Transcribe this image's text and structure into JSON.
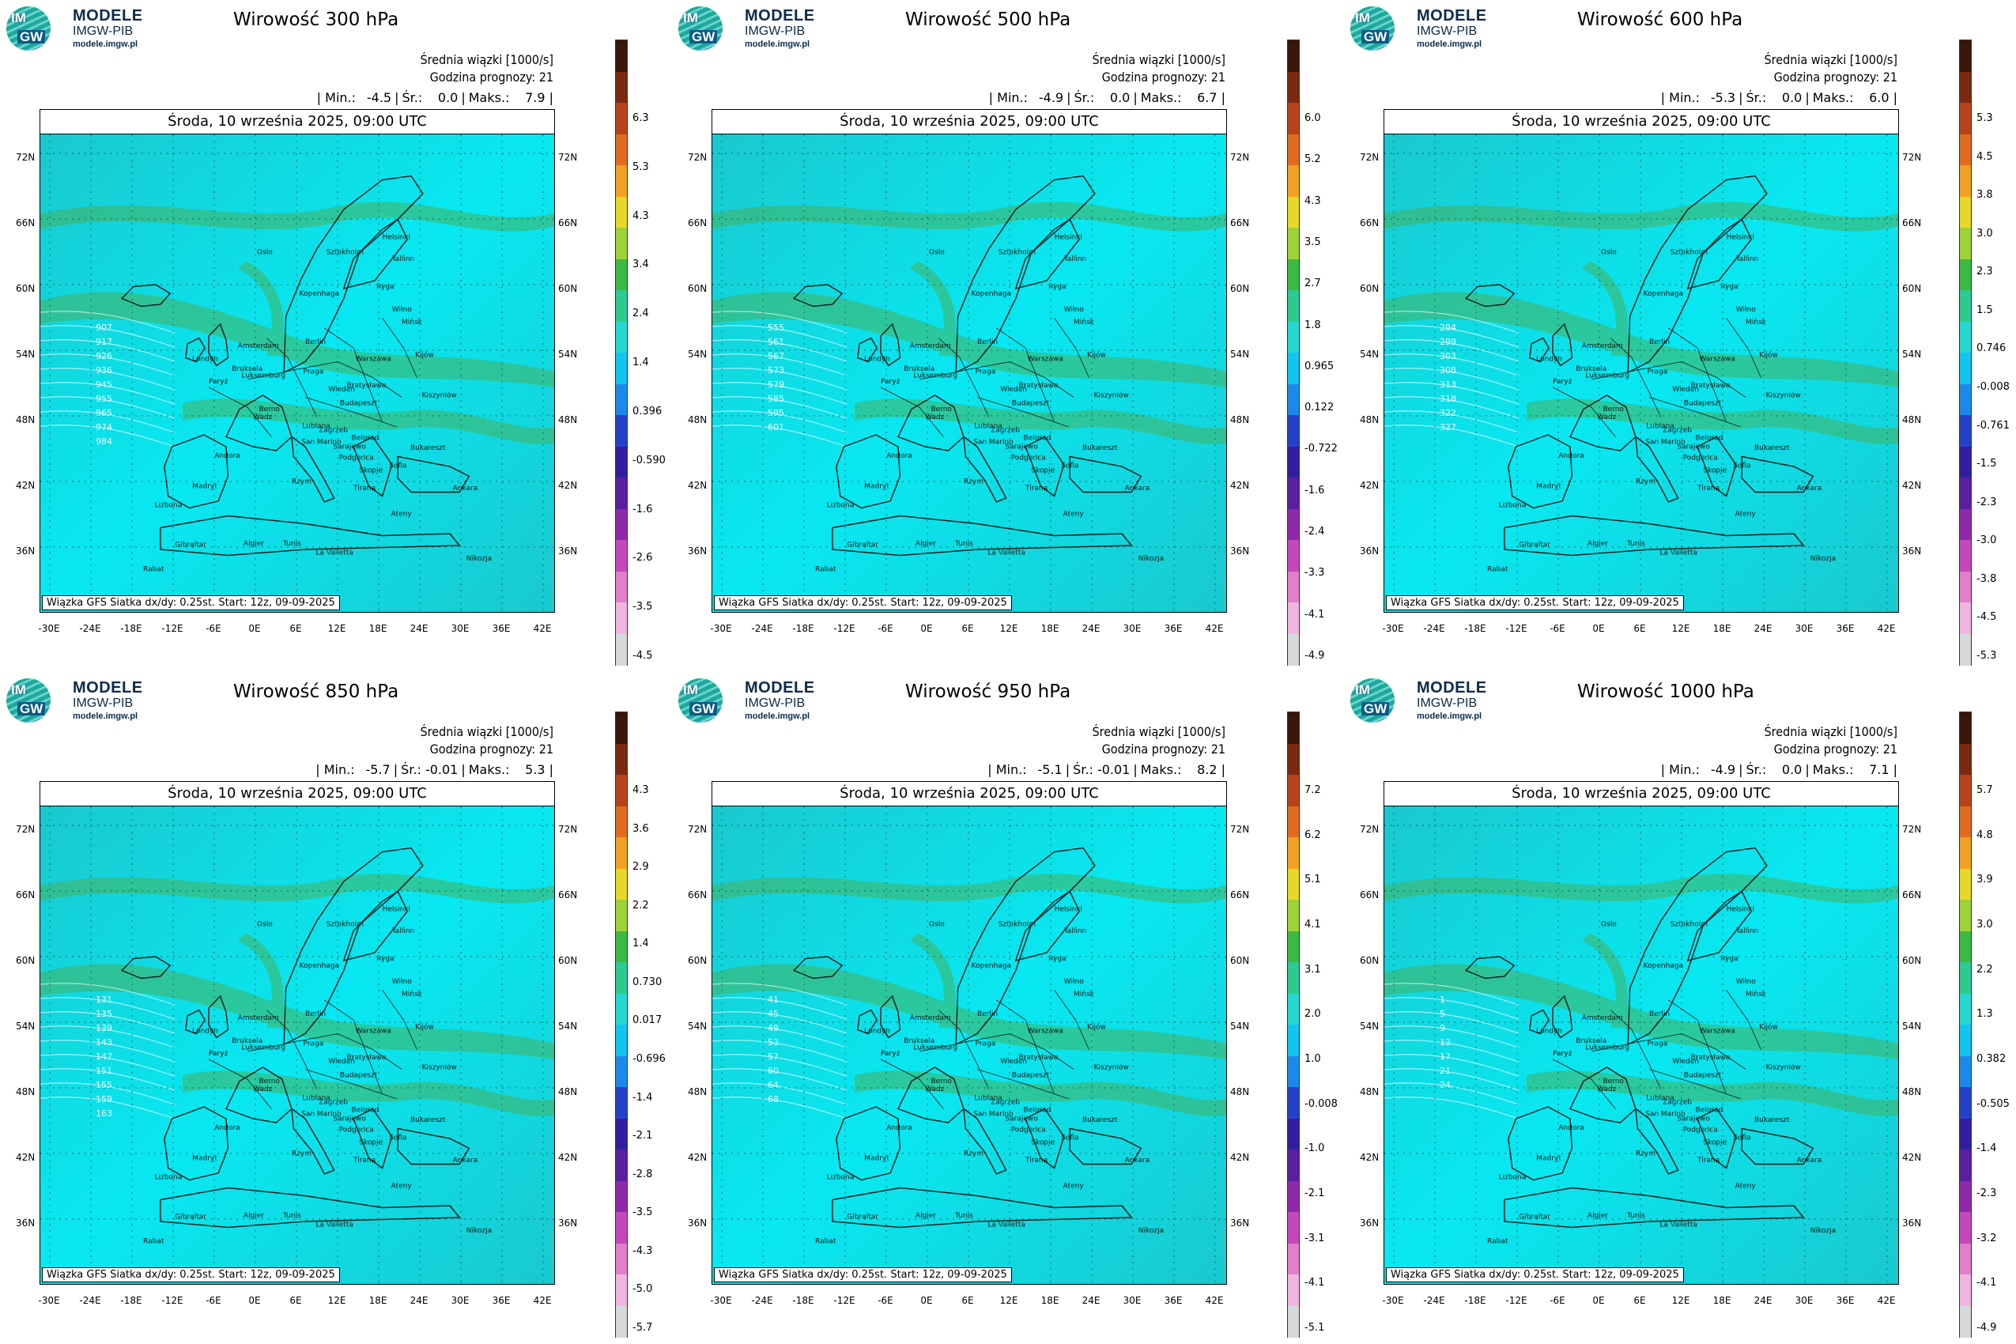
{
  "header": {
    "brand_line1": "MODELE",
    "brand_line2": "IMGW-PIB",
    "brand_line3": "modele.imgw.pl",
    "logo_top": "IM",
    "logo_bottom": "GW"
  },
  "panels": [
    {
      "title": "Wirowość 300 hPa",
      "avg_label": "Średnia wiązki [1000/s]",
      "forecast_label": "Godzina prognozy: 21",
      "min_label": "Min.:",
      "min": "-4.5",
      "avg_short": "Śr.:",
      "avg": "0.0",
      "max_label": "Maks.:",
      "max": "7.9",
      "date": "Środa, 10 września 2025, 09:00 UTC",
      "source": "Wiązka GFS Siatka dx/dy: 0.25st. Start: 12z, 09-09-2025",
      "colorbar": [
        "6.3",
        "5.3",
        "4.3",
        "3.4",
        "2.4",
        "1.4",
        "0.396",
        "-0.590",
        "-1.6",
        "-2.6",
        "-3.5",
        "-4.5"
      ],
      "contours": [
        "907",
        "917",
        "926",
        "936",
        "945",
        "955",
        "965",
        "974",
        "984"
      ]
    },
    {
      "title": "Wirowość 500 hPa",
      "avg_label": "Średnia wiązki [1000/s]",
      "forecast_label": "Godzina prognozy: 21",
      "min_label": "Min.:",
      "min": "-4.9",
      "avg_short": "Śr.:",
      "avg": "0.0",
      "max_label": "Maks.:",
      "max": "6.7",
      "date": "Środa, 10 września 2025, 09:00 UTC",
      "source": "Wiązka GFS Siatka dx/dy: 0.25st. Start: 12z, 09-09-2025",
      "colorbar": [
        "6.0",
        "5.2",
        "4.3",
        "3.5",
        "2.7",
        "1.8",
        "0.965",
        "0.122",
        "-0.722",
        "-1.6",
        "-2.4",
        "-3.3",
        "-4.1",
        "-4.9"
      ],
      "contours": [
        "555",
        "561",
        "567",
        "573",
        "579",
        "585",
        "595",
        "601"
      ]
    },
    {
      "title": "Wirowość 600 hPa",
      "avg_label": "Średnia wiązki [1000/s]",
      "forecast_label": "Godzina prognozy: 21",
      "min_label": "Min.:",
      "min": "-5.3",
      "avg_short": "Śr.:",
      "avg": "0.0",
      "max_label": "Maks.:",
      "max": "6.0",
      "date": "Środa, 10 września 2025, 09:00 UTC",
      "source": "Wiązka GFS Siatka dx/dy: 0.25st. Start: 12z, 09-09-2025",
      "colorbar": [
        "5.3",
        "4.5",
        "3.8",
        "3.0",
        "2.3",
        "1.5",
        "0.746",
        "-0.008",
        "-0.761",
        "-1.5",
        "-2.3",
        "-3.0",
        "-3.8",
        "-4.5",
        "-5.3"
      ],
      "contours": [
        "294",
        "299",
        "303",
        "308",
        "313",
        "318",
        "322",
        "327"
      ]
    },
    {
      "title": "Wirowość 850 hPa",
      "avg_label": "Średnia wiązki [1000/s]",
      "forecast_label": "Godzina prognozy: 21",
      "min_label": "Min.:",
      "min": "-5.7",
      "avg_short": "Śr.:",
      "avg": "-0.01",
      "max_label": "Maks.:",
      "max": "5.3",
      "date": "Środa, 10 września 2025, 09:00 UTC",
      "source": "Wiązka GFS Siatka dx/dy: 0.25st. Start: 12z, 09-09-2025",
      "colorbar": [
        "4.3",
        "3.6",
        "2.9",
        "2.2",
        "1.4",
        "0.730",
        "0.017",
        "-0.696",
        "-1.4",
        "-2.1",
        "-2.8",
        "-3.5",
        "-4.3",
        "-5.0",
        "-5.7"
      ],
      "contours": [
        "131",
        "135",
        "139",
        "143",
        "147",
        "151",
        "155",
        "159",
        "163"
      ]
    },
    {
      "title": "Wirowość 950 hPa",
      "avg_label": "Średnia wiązki [1000/s]",
      "forecast_label": "Godzina prognozy: 21",
      "min_label": "Min.:",
      "min": "-5.1",
      "avg_short": "Śr.:",
      "avg": "-0.01",
      "max_label": "Maks.:",
      "max": "8.2",
      "date": "Środa, 10 września 2025, 09:00 UTC",
      "source": "Wiązka GFS Siatka dx/dy: 0.25st. Start: 12z, 09-09-2025",
      "colorbar": [
        "7.2",
        "6.2",
        "5.1",
        "4.1",
        "3.1",
        "2.0",
        "1.0",
        "-0.008",
        "-1.0",
        "-2.1",
        "-3.1",
        "-4.1",
        "-5.1"
      ],
      "contours": [
        "41",
        "45",
        "49",
        "53",
        "57",
        "60",
        "64",
        "68"
      ]
    },
    {
      "title": "Wirowość 1000 hPa",
      "avg_label": "Średnia wiązki [1000/s]",
      "forecast_label": "Godzina prognozy: 21",
      "min_label": "Min.:",
      "min": "-4.9",
      "avg_short": "Śr.:",
      "avg": "0.0",
      "max_label": "Maks.:",
      "max": "7.1",
      "date": "Środa, 10 września 2025, 09:00 UTC",
      "source": "Wiązka GFS Siatka dx/dy: 0.25st. Start: 12z, 09-09-2025",
      "colorbar": [
        "5.7",
        "4.8",
        "3.9",
        "3.0",
        "2.2",
        "1.3",
        "0.382",
        "-0.505",
        "-1.4",
        "-2.3",
        "-3.2",
        "-4.1",
        "-4.9"
      ],
      "contours": [
        "1",
        "5",
        "9",
        "13",
        "17",
        "21",
        "24"
      ]
    }
  ],
  "lat_labels": [
    "72N",
    "66N",
    "60N",
    "54N",
    "48N",
    "42N",
    "36N"
  ],
  "lon_labels": [
    "-30E",
    "-24E",
    "-18E",
    "-12E",
    "-6E",
    "0E",
    "6E",
    "12E",
    "18E",
    "24E",
    "30E",
    "36E",
    "42E"
  ],
  "cities": [
    "Oslo",
    "Sztokholm",
    "Helsinki",
    "Tallinn",
    "Ryga",
    "Kopenhaga",
    "Wilno",
    "Mińsk",
    "Amsterdam",
    "Berlin",
    "Warszawa",
    "Londyn",
    "Bruksela",
    "Luksemburg",
    "Kijów",
    "Paryż",
    "Praga",
    "Wiedeń",
    "Bratysława",
    "Kiszyniów",
    "Berno",
    "Wadz",
    "Budapeszt",
    "Lublana",
    "Zagrzeb",
    "Belgrad",
    "Bukareszt",
    "San Marino",
    "Sarajewo",
    "Podgorica",
    "Sofia",
    "Andora",
    "Skopje",
    "Madryt",
    "Rzym",
    "Tirana",
    "Ankara",
    "Lizbona",
    "Ateny",
    "Gibraltar",
    "Algier",
    "Tunis",
    "La Valletta",
    "Rabat",
    "Nikozja"
  ],
  "colors": {
    "map_teal": "#19c9cf",
    "map_cyan": "#08e8f2",
    "map_green": "#45b25f",
    "colormap": [
      "#3a1608",
      "#7a2a10",
      "#b8421c",
      "#e06a22",
      "#f0a126",
      "#e8d62c",
      "#9cd23a",
      "#3cb845",
      "#2ec98f",
      "#25d9d2",
      "#13c4ef",
      "#1e88e8",
      "#2441c9",
      "#3020a0",
      "#5b1fa0",
      "#8e2aa8",
      "#c249b7",
      "#e07fcc",
      "#f0b5df",
      "#d8d8d8"
    ]
  }
}
